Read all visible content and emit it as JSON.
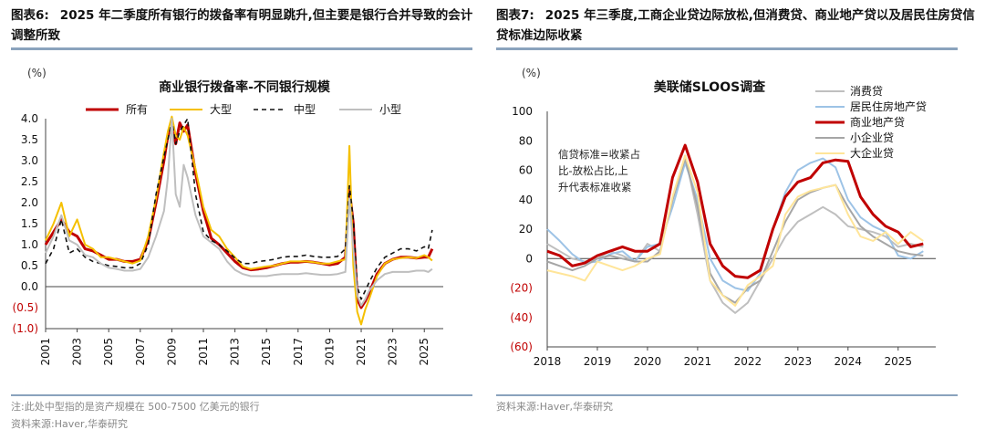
{
  "left": {
    "figure_label": "图表6:",
    "figure_title": "2025 年二季度所有银行的拨备率有明显跳升,但主要是银行合并导致的会计调整所致",
    "notes": [
      "注:此处中型指的是资产规模在 500-7500 亿美元的银行",
      "资料来源:Haver,华泰研究"
    ]
  },
  "right": {
    "figure_label": "图表7:",
    "figure_title": "2025 年三季度,工商企业贷边际放松,但消费贷、商业地产贷以及居民住房贷信贷标准边际收紧",
    "notes": [
      "资料来源:Haver,华泰研究"
    ]
  },
  "chart_data": [
    {
      "type": "line",
      "title": "商业银行拨备率-不同银行规模",
      "unit_label": "(%)",
      "ylim": [
        -1.0,
        4.0
      ],
      "y_ticks": [
        -1.0,
        -0.5,
        0.0,
        0.5,
        1.0,
        1.5,
        2.0,
        2.5,
        3.0,
        3.5,
        4.0
      ],
      "y_tick_labels": [
        "(1.0)",
        "(0.5)",
        "0.0",
        "0.5",
        "1.0",
        "1.5",
        "2.0",
        "2.5",
        "3.0",
        "3.5",
        "4.0"
      ],
      "xlim": [
        2001,
        2026.2
      ],
      "x_ticks": [
        2001,
        2003,
        2005,
        2007,
        2009,
        2011,
        2013,
        2015,
        2017,
        2019,
        2021,
        2023,
        2025
      ],
      "series": [
        {
          "name": "所有",
          "color": "#c00000",
          "style": "solid",
          "width": 3,
          "x": [
            2001,
            2001.5,
            2002,
            2002.5,
            2003,
            2003.5,
            2004,
            2004.5,
            2005,
            2005.5,
            2006,
            2006.5,
            2007,
            2007.5,
            2008,
            2008.5,
            2008.75,
            2009,
            2009.25,
            2009.5,
            2009.75,
            2010,
            2010.5,
            2011,
            2011.5,
            2012,
            2012.5,
            2013,
            2013.5,
            2014,
            2014.5,
            2015,
            2015.5,
            2016,
            2016.5,
            2017,
            2017.5,
            2018,
            2018.5,
            2019,
            2019.5,
            2020,
            2020.25,
            2020.5,
            2020.75,
            2021,
            2021.25,
            2021.5,
            2022,
            2022.5,
            2023,
            2023.5,
            2024,
            2024.5,
            2025,
            2025.25,
            2025.5
          ],
          "y": [
            1.0,
            1.3,
            1.6,
            1.3,
            1.2,
            0.9,
            0.85,
            0.75,
            0.65,
            0.65,
            0.6,
            0.6,
            0.65,
            1.1,
            2.0,
            3.0,
            3.6,
            3.8,
            3.4,
            3.9,
            3.7,
            3.85,
            2.7,
            1.8,
            1.15,
            1.0,
            0.8,
            0.6,
            0.45,
            0.4,
            0.42,
            0.45,
            0.5,
            0.55,
            0.58,
            0.58,
            0.6,
            0.58,
            0.55,
            0.52,
            0.55,
            0.7,
            2.3,
            1.5,
            -0.3,
            -0.5,
            -0.35,
            -0.15,
            0.3,
            0.55,
            0.65,
            0.7,
            0.7,
            0.68,
            0.7,
            0.7,
            0.9
          ]
        },
        {
          "name": "大型",
          "color": "#f5c000",
          "style": "solid",
          "width": 2,
          "x": [
            2001,
            2001.5,
            2002,
            2002.5,
            2003,
            2003.5,
            2004,
            2004.5,
            2005,
            2005.5,
            2006,
            2006.5,
            2007,
            2007.5,
            2008,
            2008.5,
            2008.75,
            2009,
            2009.25,
            2009.5,
            2009.75,
            2010,
            2010.5,
            2011,
            2011.5,
            2012,
            2012.5,
            2013,
            2013.5,
            2014,
            2014.5,
            2015,
            2015.5,
            2016,
            2016.5,
            2017,
            2017.5,
            2018,
            2018.5,
            2019,
            2019.5,
            2020,
            2020.25,
            2020.5,
            2020.75,
            2021,
            2021.25,
            2021.5,
            2022,
            2022.5,
            2023,
            2023.5,
            2024,
            2024.5,
            2025,
            2025.25,
            2025.5
          ],
          "y": [
            1.1,
            1.5,
            2.0,
            1.2,
            1.6,
            1.0,
            0.9,
            0.7,
            0.7,
            0.65,
            0.6,
            0.55,
            0.62,
            1.2,
            2.1,
            3.2,
            3.7,
            4.05,
            3.6,
            3.5,
            3.8,
            3.6,
            2.8,
            1.9,
            1.35,
            1.2,
            0.9,
            0.7,
            0.48,
            0.42,
            0.45,
            0.48,
            0.5,
            0.55,
            0.6,
            0.6,
            0.6,
            0.58,
            0.55,
            0.55,
            0.6,
            0.65,
            3.35,
            0.5,
            -0.6,
            -0.9,
            -0.55,
            -0.3,
            0.25,
            0.55,
            0.65,
            0.68,
            0.7,
            0.68,
            0.75,
            0.7,
            0.62
          ]
        },
        {
          "name": "中型",
          "color": "#111111",
          "style": "dash",
          "width": 1.6,
          "x": [
            2001,
            2001.5,
            2002,
            2002.5,
            2003,
            2003.5,
            2004,
            2004.5,
            2005,
            2005.5,
            2006,
            2006.5,
            2007,
            2007.5,
            2008,
            2008.5,
            2008.75,
            2009,
            2009.25,
            2009.5,
            2009.75,
            2010,
            2010.5,
            2011,
            2011.5,
            2012,
            2012.5,
            2013,
            2013.5,
            2014,
            2014.5,
            2015,
            2015.5,
            2016,
            2016.5,
            2017,
            2017.5,
            2018,
            2018.5,
            2019,
            2019.5,
            2020,
            2020.25,
            2020.5,
            2020.75,
            2021,
            2021.25,
            2021.5,
            2022,
            2022.5,
            2023,
            2023.5,
            2024,
            2024.5,
            2025,
            2025.25,
            2025.5
          ],
          "y": [
            0.55,
            0.9,
            1.6,
            0.8,
            0.9,
            0.7,
            0.6,
            0.55,
            0.5,
            0.48,
            0.45,
            0.45,
            0.55,
            1.0,
            2.2,
            3.1,
            3.5,
            3.95,
            3.4,
            3.7,
            3.85,
            4.0,
            2.2,
            1.3,
            1.1,
            1.0,
            0.85,
            0.68,
            0.55,
            0.55,
            0.6,
            0.62,
            0.65,
            0.7,
            0.72,
            0.72,
            0.75,
            0.72,
            0.7,
            0.7,
            0.72,
            0.9,
            2.4,
            1.6,
            0.0,
            -0.3,
            -0.1,
            0.1,
            0.45,
            0.7,
            0.8,
            0.9,
            0.9,
            0.85,
            0.95,
            0.9,
            1.35
          ]
        },
        {
          "name": "小型",
          "color": "#bfbfbf",
          "style": "solid",
          "width": 2,
          "x": [
            2001,
            2001.5,
            2002,
            2002.5,
            2003,
            2003.5,
            2004,
            2004.5,
            2005,
            2005.5,
            2006,
            2006.5,
            2007,
            2007.5,
            2008,
            2008.5,
            2008.75,
            2009,
            2009.25,
            2009.5,
            2009.75,
            2010,
            2010.5,
            2011,
            2011.5,
            2012,
            2012.5,
            2013,
            2013.5,
            2014,
            2014.5,
            2015,
            2015.5,
            2016,
            2016.5,
            2017,
            2017.5,
            2018,
            2018.5,
            2019,
            2019.5,
            2020,
            2020.25,
            2020.5,
            2020.75,
            2021,
            2021.25,
            2021.5,
            2022,
            2022.5,
            2023,
            2023.5,
            2024,
            2024.5,
            2025,
            2025.25,
            2025.5
          ],
          "y": [
            0.8,
            1.2,
            1.7,
            1.1,
            1.0,
            0.75,
            0.7,
            0.55,
            0.45,
            0.42,
            0.38,
            0.38,
            0.42,
            0.7,
            1.2,
            1.8,
            2.6,
            4.0,
            2.2,
            1.9,
            2.9,
            2.6,
            1.7,
            1.2,
            1.05,
            0.9,
            0.6,
            0.4,
            0.3,
            0.25,
            0.25,
            0.25,
            0.28,
            0.3,
            0.3,
            0.3,
            0.32,
            0.3,
            0.28,
            0.28,
            0.3,
            0.35,
            2.1,
            0.9,
            -0.2,
            -0.45,
            -0.3,
            -0.1,
            0.15,
            0.3,
            0.35,
            0.35,
            0.35,
            0.38,
            0.38,
            0.35,
            0.42
          ]
        }
      ]
    },
    {
      "type": "line",
      "title": "美联储SLOOS调查",
      "unit_label": "(%)",
      "ylim": [
        -60,
        100
      ],
      "y_ticks": [
        -60,
        -40,
        -20,
        0,
        20,
        40,
        60,
        80,
        100
      ],
      "y_tick_labels": [
        "(60)",
        "(40)",
        "(20)",
        "0",
        "20",
        "40",
        "60",
        "80",
        "100"
      ],
      "xlim": [
        2018,
        2025.75
      ],
      "x_ticks": [
        2018,
        2019,
        2020,
        2021,
        2022,
        2023,
        2024,
        2025
      ],
      "annotation": [
        "信贷标准=收紧占",
        "比-放松占比,上",
        "升代表标准收紧"
      ],
      "series": [
        {
          "name": "消费贷",
          "color": "#bfbfbf",
          "style": "solid",
          "width": 2,
          "x": [
            2018,
            2018.25,
            2018.5,
            2018.75,
            2019,
            2019.25,
            2019.5,
            2019.75,
            2020,
            2020.25,
            2020.5,
            2020.75,
            2021,
            2021.25,
            2021.5,
            2021.75,
            2022,
            2022.25,
            2022.5,
            2022.75,
            2023,
            2023.25,
            2023.5,
            2023.75,
            2024,
            2024.25,
            2024.5,
            2024.75,
            2025,
            2025.25,
            2025.5
          ],
          "y": [
            10,
            5,
            0,
            -2,
            0,
            5,
            2,
            -2,
            10,
            5,
            40,
            70,
            30,
            -15,
            -30,
            -37,
            -30,
            -15,
            0,
            15,
            25,
            30,
            35,
            30,
            22,
            20,
            18,
            15,
            8,
            10,
            8
          ]
        },
        {
          "name": "居民住房地产贷",
          "color": "#9dc3e6",
          "style": "solid",
          "width": 2,
          "x": [
            2018,
            2018.25,
            2018.5,
            2018.75,
            2019,
            2019.25,
            2019.5,
            2019.75,
            2020,
            2020.25,
            2020.5,
            2020.75,
            2021,
            2021.25,
            2021.5,
            2021.75,
            2022,
            2022.25,
            2022.5,
            2022.75,
            2023,
            2023.25,
            2023.5,
            2023.75,
            2024,
            2024.25,
            2024.5,
            2024.75,
            2025,
            2025.25,
            2025.5
          ],
          "y": [
            20,
            12,
            3,
            -3,
            -2,
            3,
            5,
            -2,
            8,
            10,
            35,
            65,
            40,
            0,
            -15,
            -20,
            -22,
            -10,
            20,
            45,
            60,
            65,
            68,
            62,
            40,
            28,
            22,
            18,
            2,
            0,
            5
          ]
        },
        {
          "name": "商业地产贷",
          "color": "#c00000",
          "style": "solid",
          "width": 3,
          "x": [
            2018,
            2018.25,
            2018.5,
            2018.75,
            2019,
            2019.25,
            2019.5,
            2019.75,
            2020,
            2020.25,
            2020.5,
            2020.75,
            2021,
            2021.25,
            2021.5,
            2021.75,
            2022,
            2022.25,
            2022.5,
            2022.75,
            2023,
            2023.25,
            2023.5,
            2023.75,
            2024,
            2024.25,
            2024.5,
            2024.75,
            2025,
            2025.25,
            2025.5
          ],
          "y": [
            5,
            2,
            -5,
            -3,
            2,
            5,
            8,
            5,
            5,
            10,
            55,
            77,
            52,
            10,
            -5,
            -12,
            -13,
            -8,
            20,
            42,
            52,
            55,
            65,
            67,
            66,
            42,
            30,
            22,
            18,
            8,
            10
          ]
        },
        {
          "name": "小企业贷",
          "color": "#a6a6a6",
          "style": "solid",
          "width": 2,
          "x": [
            2018,
            2018.25,
            2018.5,
            2018.75,
            2019,
            2019.25,
            2019.5,
            2019.75,
            2020,
            2020.25,
            2020.5,
            2020.75,
            2021,
            2021.25,
            2021.5,
            2021.75,
            2022,
            2022.25,
            2022.5,
            2022.75,
            2023,
            2023.25,
            2023.5,
            2023.75,
            2024,
            2024.25,
            2024.5,
            2024.75,
            2025,
            2025.25,
            2025.5
          ],
          "y": [
            -2,
            -5,
            -8,
            -5,
            0,
            2,
            0,
            -2,
            -2,
            5,
            40,
            68,
            35,
            -10,
            -25,
            -30,
            -20,
            -15,
            5,
            25,
            40,
            45,
            48,
            50,
            35,
            22,
            15,
            10,
            5,
            3,
            2
          ]
        },
        {
          "name": "大企业贷",
          "color": "#ffe599",
          "style": "solid",
          "width": 2,
          "x": [
            2018,
            2018.25,
            2018.5,
            2018.75,
            2019,
            2019.25,
            2019.5,
            2019.75,
            2020,
            2020.25,
            2020.5,
            2020.75,
            2021,
            2021.25,
            2021.5,
            2021.75,
            2022,
            2022.25,
            2022.5,
            2022.75,
            2023,
            2023.25,
            2023.5,
            2023.75,
            2024,
            2024.25,
            2024.5,
            2024.75,
            2025,
            2025.25,
            2025.5
          ],
          "y": [
            -8,
            -10,
            -12,
            -15,
            -2,
            -5,
            -8,
            -5,
            0,
            3,
            42,
            70,
            45,
            -15,
            -25,
            -32,
            -18,
            -12,
            -5,
            30,
            42,
            46,
            48,
            50,
            30,
            15,
            12,
            18,
            10,
            18,
            12
          ]
        }
      ]
    }
  ]
}
